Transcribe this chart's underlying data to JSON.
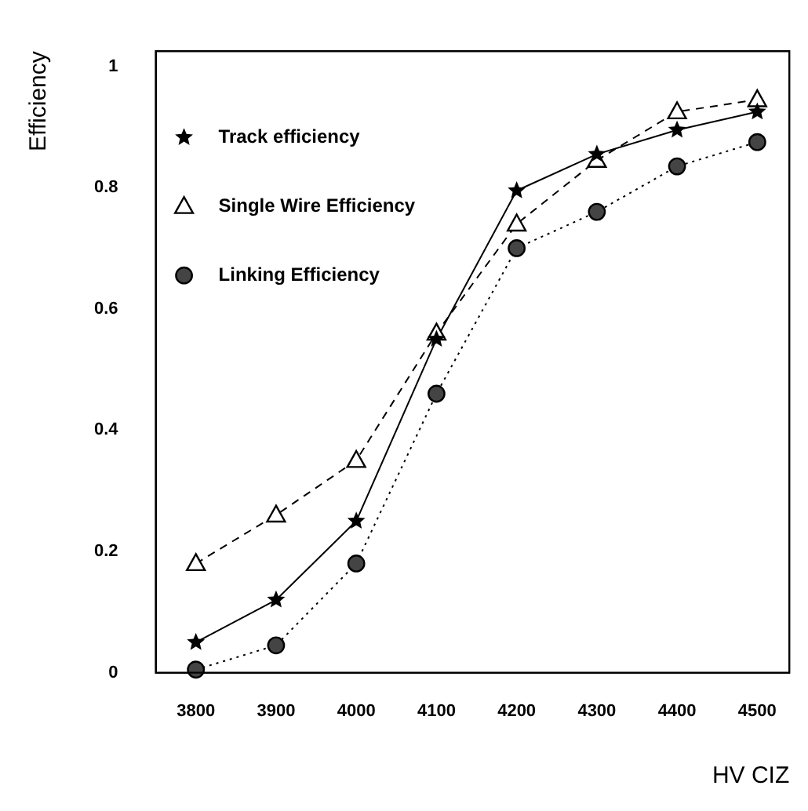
{
  "chart_data": {
    "type": "line",
    "xlabel": "HV CIZ",
    "ylabel": "Efficiency",
    "x": [
      3800,
      3900,
      4000,
      4100,
      4200,
      4300,
      4400,
      4500
    ],
    "xlim": [
      3750,
      4540
    ],
    "xticks": [
      3800,
      3900,
      4000,
      4100,
      4200,
      4300,
      4400,
      4500
    ],
    "ylim": [
      0,
      1.025
    ],
    "yticks": [
      0,
      0.2,
      0.4,
      0.6,
      0.8,
      1
    ],
    "grid": false,
    "legend": "top left",
    "series": [
      {
        "name": "Track efficiency",
        "color": "#000000",
        "marker": "star",
        "line_style": "solid",
        "values": [
          0.05,
          0.12,
          0.25,
          0.55,
          0.795,
          0.855,
          0.895,
          0.925
        ]
      },
      {
        "name": "Single Wire Efficiency",
        "color": "#000000",
        "marker": "triangle",
        "line_style": "dashed",
        "values": [
          0.18,
          0.26,
          0.35,
          0.56,
          0.74,
          0.845,
          0.925,
          0.945
        ]
      },
      {
        "name": "Linking Efficiency",
        "color": "#000000",
        "marker": "circle",
        "line_style": "dotted",
        "values": [
          0.005,
          0.045,
          0.18,
          0.46,
          0.7,
          0.76,
          0.835,
          0.875
        ]
      }
    ]
  }
}
